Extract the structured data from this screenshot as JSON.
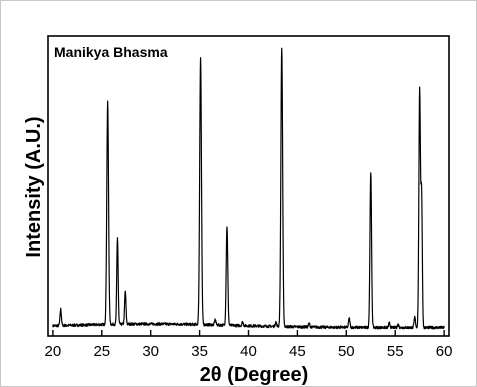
{
  "chart_data": {
    "type": "line",
    "title": "Manikya Bhasma",
    "xlabel": "2θ (Degree)",
    "ylabel": "Intensity (A.U.)",
    "xlim": [
      19.5,
      60.5
    ],
    "ylim": [
      0,
      100
    ],
    "xticks": [
      20,
      25,
      30,
      35,
      40,
      45,
      50,
      55,
      60
    ],
    "grid": false,
    "legend": "none",
    "color": "#000000",
    "series": [
      {
        "peaks": [
          {
            "x": 20.8,
            "height": 5.5,
            "width": 0.07
          },
          {
            "x": 25.6,
            "height": 74.0,
            "width": 0.09
          },
          {
            "x": 26.6,
            "height": 29.0,
            "width": 0.07
          },
          {
            "x": 27.4,
            "height": 11.0,
            "width": 0.07
          },
          {
            "x": 35.1,
            "height": 89.0,
            "width": 0.09
          },
          {
            "x": 36.6,
            "height": 1.8,
            "width": 0.07
          },
          {
            "x": 37.8,
            "height": 33.0,
            "width": 0.08
          },
          {
            "x": 39.4,
            "height": 1.2,
            "width": 0.07
          },
          {
            "x": 42.8,
            "height": 1.5,
            "width": 0.07
          },
          {
            "x": 43.4,
            "height": 93.0,
            "width": 0.09
          },
          {
            "x": 46.2,
            "height": 1.2,
            "width": 0.07
          },
          {
            "x": 50.3,
            "height": 3.0,
            "width": 0.07
          },
          {
            "x": 52.5,
            "height": 52.0,
            "width": 0.08
          },
          {
            "x": 54.4,
            "height": 1.5,
            "width": 0.07
          },
          {
            "x": 55.3,
            "height": 1.0,
            "width": 0.07
          },
          {
            "x": 57.0,
            "height": 3.5,
            "width": 0.07
          },
          {
            "x": 57.5,
            "height": 79.0,
            "width": 0.08
          },
          {
            "x": 57.7,
            "height": 44.0,
            "width": 0.07
          }
        ],
        "baseline": 2.8
      }
    ]
  }
}
